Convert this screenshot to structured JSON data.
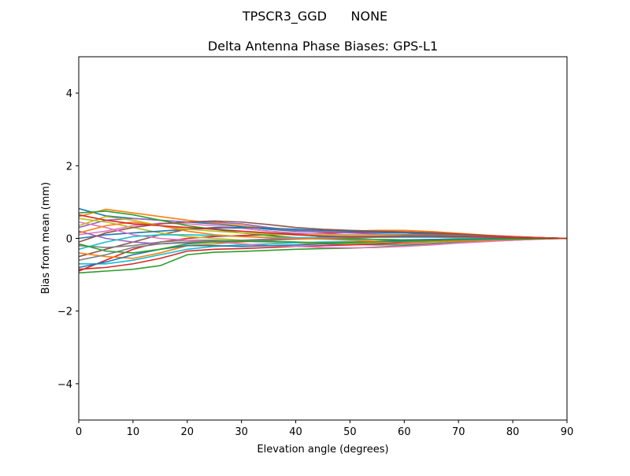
{
  "chart_data": {
    "type": "line",
    "suptitle": "TPSCR3_GGD      NONE",
    "title": "Delta Antenna Phase Biases: GPS-L1",
    "xlabel": "Elevation angle (degrees)",
    "ylabel": "Bias from mean (mm)",
    "xlim": [
      0,
      90
    ],
    "ylim": [
      -5,
      5
    ],
    "xticks": [
      0,
      10,
      20,
      30,
      40,
      50,
      60,
      70,
      80,
      90
    ],
    "yticks": [
      -4,
      -2,
      0,
      2,
      4
    ],
    "grid": false,
    "colors": [
      "#1f77b4",
      "#ff7f0e",
      "#2ca02c",
      "#d62728",
      "#9467bd",
      "#8c564b",
      "#e377c2",
      "#7f7f7f",
      "#bcbd22",
      "#17becf"
    ],
    "x": [
      0,
      5,
      10,
      15,
      20,
      25,
      30,
      35,
      40,
      45,
      50,
      55,
      60,
      65,
      70,
      75,
      80,
      85,
      90
    ],
    "series": [
      {
        "values": [
          0.82,
          0.62,
          0.55,
          0.5,
          0.45,
          0.4,
          0.32,
          0.25,
          0.2,
          0.18,
          0.17,
          0.16,
          0.15,
          0.12,
          0.09,
          0.06,
          0.04,
          0.02,
          0
        ]
      },
      {
        "values": [
          0.6,
          0.8,
          0.7,
          0.6,
          0.5,
          0.42,
          0.35,
          0.28,
          0.22,
          0.2,
          0.2,
          0.22,
          0.22,
          0.19,
          0.14,
          0.09,
          0.05,
          0.02,
          0
        ]
      },
      {
        "values": [
          -0.95,
          -0.9,
          -0.85,
          -0.75,
          -0.45,
          -0.38,
          -0.36,
          -0.33,
          -0.3,
          -0.28,
          -0.27,
          -0.24,
          -0.2,
          -0.16,
          -0.12,
          -0.08,
          -0.05,
          -0.02,
          0
        ]
      },
      {
        "values": [
          -0.9,
          -0.6,
          -0.3,
          -0.1,
          0.0,
          0.05,
          0.08,
          0.1,
          0.12,
          0.14,
          0.16,
          0.18,
          0.18,
          0.16,
          0.12,
          0.08,
          0.05,
          0.02,
          0
        ]
      },
      {
        "values": [
          0.3,
          0.5,
          0.55,
          0.5,
          0.45,
          0.45,
          0.4,
          0.3,
          0.22,
          0.18,
          0.15,
          0.12,
          0.1,
          0.08,
          0.06,
          0.04,
          0.02,
          0.01,
          0
        ]
      },
      {
        "values": [
          -0.5,
          -0.3,
          -0.1,
          0.1,
          0.25,
          0.3,
          0.28,
          0.2,
          0.12,
          0.05,
          0.0,
          -0.03,
          -0.04,
          -0.04,
          -0.03,
          -0.02,
          -0.01,
          0,
          0
        ]
      },
      {
        "values": [
          0.1,
          0.2,
          0.35,
          0.42,
          0.4,
          0.35,
          0.28,
          0.2,
          0.15,
          0.12,
          0.1,
          0.1,
          0.1,
          0.09,
          0.07,
          0.05,
          0.03,
          0.01,
          0
        ]
      },
      {
        "values": [
          -0.2,
          -0.25,
          -0.2,
          -0.1,
          -0.05,
          -0.05,
          -0.08,
          -0.1,
          -0.12,
          -0.15,
          -0.17,
          -0.18,
          -0.17,
          -0.14,
          -0.1,
          -0.06,
          -0.03,
          -0.01,
          0
        ]
      },
      {
        "values": [
          0.55,
          0.45,
          0.3,
          0.15,
          0.05,
          0.0,
          -0.05,
          -0.1,
          -0.12,
          -0.14,
          -0.15,
          -0.14,
          -0.12,
          -0.1,
          -0.07,
          -0.05,
          -0.03,
          -0.01,
          0
        ]
      },
      {
        "values": [
          -0.7,
          -0.7,
          -0.6,
          -0.45,
          -0.3,
          -0.22,
          -0.18,
          -0.15,
          -0.12,
          -0.1,
          -0.09,
          -0.08,
          -0.07,
          -0.05,
          -0.04,
          -0.03,
          -0.02,
          -0.01,
          0
        ]
      },
      {
        "values": [
          0.0,
          0.1,
          0.15,
          0.2,
          0.25,
          0.28,
          0.3,
          0.28,
          0.25,
          0.22,
          0.2,
          0.18,
          0.15,
          0.12,
          0.09,
          0.06,
          0.03,
          0.01,
          0
        ]
      },
      {
        "values": [
          -0.4,
          -0.5,
          -0.55,
          -0.4,
          -0.2,
          -0.15,
          -0.1,
          -0.05,
          0.0,
          0.03,
          0.05,
          0.06,
          0.06,
          0.05,
          0.04,
          0.03,
          0.02,
          0.01,
          0
        ]
      },
      {
        "values": [
          0.7,
          0.75,
          0.65,
          0.5,
          0.35,
          0.25,
          0.15,
          0.08,
          0.02,
          0.0,
          -0.02,
          -0.03,
          -0.04,
          -0.03,
          -0.02,
          -0.02,
          -0.01,
          0,
          0
        ]
      },
      {
        "values": [
          -0.85,
          -0.8,
          -0.7,
          -0.55,
          -0.35,
          -0.3,
          -0.28,
          -0.25,
          -0.22,
          -0.2,
          -0.18,
          -0.15,
          -0.12,
          -0.09,
          -0.06,
          -0.04,
          -0.02,
          -0.01,
          0
        ]
      },
      {
        "values": [
          0.2,
          0.0,
          -0.1,
          -0.15,
          -0.12,
          -0.1,
          -0.08,
          -0.05,
          -0.02,
          0.0,
          0.02,
          0.03,
          0.04,
          0.04,
          0.03,
          0.02,
          0.01,
          0,
          0
        ]
      },
      {
        "values": [
          -0.1,
          0.15,
          0.3,
          0.4,
          0.45,
          0.48,
          0.45,
          0.38,
          0.3,
          0.25,
          0.22,
          0.2,
          0.18,
          0.15,
          0.11,
          0.07,
          0.04,
          0.02,
          0
        ]
      },
      {
        "values": [
          0.45,
          0.3,
          0.1,
          0.0,
          -0.05,
          -0.1,
          -0.15,
          -0.2,
          -0.22,
          -0.25,
          -0.26,
          -0.25,
          -0.22,
          -0.18,
          -0.13,
          -0.09,
          -0.05,
          -0.02,
          0
        ]
      },
      {
        "values": [
          -0.6,
          -0.45,
          -0.25,
          -0.15,
          -0.1,
          -0.08,
          -0.05,
          -0.02,
          0.0,
          0.02,
          0.05,
          0.08,
          0.1,
          0.1,
          0.08,
          0.05,
          0.03,
          0.01,
          0
        ]
      },
      {
        "values": [
          0.35,
          0.6,
          0.5,
          0.35,
          0.25,
          0.2,
          0.15,
          0.12,
          0.1,
          0.09,
          0.08,
          0.08,
          0.07,
          0.06,
          0.05,
          0.03,
          0.02,
          0.01,
          0
        ]
      },
      {
        "values": [
          -0.3,
          -0.1,
          0.05,
          0.1,
          0.1,
          0.08,
          0.05,
          0.03,
          0.02,
          0.02,
          0.02,
          0.03,
          0.03,
          0.03,
          0.02,
          0.02,
          0.01,
          0,
          0
        ]
      },
      {
        "values": [
          -0.8,
          -0.65,
          -0.45,
          -0.3,
          -0.2,
          -0.2,
          -0.22,
          -0.2,
          -0.18,
          -0.15,
          -0.12,
          -0.08,
          -0.05,
          -0.03,
          -0.02,
          -0.01,
          -0.01,
          0,
          0
        ]
      },
      {
        "values": [
          0.15,
          0.35,
          0.45,
          0.35,
          0.2,
          0.1,
          0.05,
          0.02,
          0.0,
          -0.02,
          -0.05,
          -0.08,
          -0.1,
          -0.09,
          -0.07,
          -0.05,
          -0.03,
          -0.01,
          0
        ]
      },
      {
        "values": [
          -0.15,
          -0.35,
          -0.4,
          -0.3,
          -0.15,
          -0.1,
          -0.08,
          -0.08,
          -0.1,
          -0.12,
          -0.12,
          -0.1,
          -0.08,
          -0.06,
          -0.04,
          -0.03,
          -0.02,
          -0.01,
          0
        ]
      },
      {
        "values": [
          0.65,
          0.5,
          0.4,
          0.35,
          0.3,
          0.25,
          0.2,
          0.15,
          0.1,
          0.06,
          0.04,
          0.05,
          0.06,
          0.06,
          0.05,
          0.04,
          0.02,
          0.01,
          0
        ]
      }
    ]
  }
}
